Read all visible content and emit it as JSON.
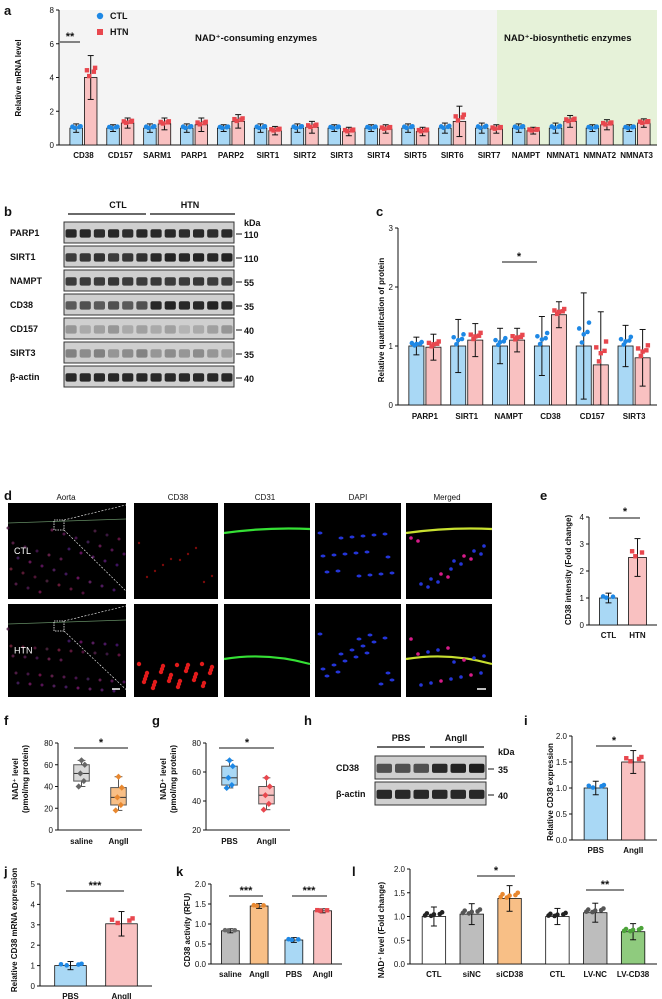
{
  "figure": {
    "panel_labels": [
      "a",
      "b",
      "c",
      "d",
      "e",
      "f",
      "g",
      "h",
      "i",
      "j",
      "k",
      "l"
    ]
  },
  "colors": {
    "ctl": "#A9D8F5",
    "ctl_dot": "#1E88E5",
    "htn": "#F9C1C1",
    "htn_dot": "#E8474E",
    "orange": "#F8BF86",
    "orange_dot": "#E88830",
    "grey": "#BDBDBD",
    "green": "#8FCB7E",
    "green_dot": "#4CA33A",
    "consuming_bg": "#F4F4F4",
    "biosynthetic_bg": "#E6F2D9"
  },
  "panel_a": {
    "ylabel": "Relative mRNA level",
    "legend": [
      "CTL",
      "HTN"
    ],
    "region_consuming": "NAD⁺-consuming enzymes",
    "region_biosynthetic": "NAD⁺-biosynthetic enzymes",
    "sig": "**"
  },
  "panel_b": {
    "group_ctl": "CTL",
    "group_htn": "HTN",
    "kda": "kDa",
    "rows": [
      {
        "name": "PARP1",
        "mw": "110"
      },
      {
        "name": "SIRT1",
        "mw": "110"
      },
      {
        "name": "NAMPT",
        "mw": "55"
      },
      {
        "name": "CD38",
        "mw": "35"
      },
      {
        "name": "CD157",
        "mw": "40"
      },
      {
        "name": "SIRT3",
        "mw": "35"
      },
      {
        "name": "β-actin",
        "mw": "40"
      }
    ]
  },
  "panel_c": {
    "ylabel": "Relative quantification of protein",
    "sig": "*"
  },
  "panel_d": {
    "columns": [
      "Aorta",
      "CD38",
      "CD31",
      "DAPI",
      "Merged"
    ],
    "rows": [
      "CTL",
      "HTN"
    ]
  },
  "panel_e": {
    "sig": "*"
  },
  "panel_f": {
    "ylabel_main": "NAD⁺ level",
    "ylabel_sub": "(pmol/mg protein)",
    "sig": "*"
  },
  "panel_g": {
    "ylabel_main": "NAD⁺ level",
    "ylabel_sub": "(pmol/mg protein)",
    "sig": "*"
  },
  "panel_h": {
    "groups": [
      "PBS",
      "AngII"
    ],
    "kda": "kDa",
    "rows": [
      {
        "name": "CD38",
        "mw": "35"
      },
      {
        "name": "β-actin",
        "mw": "40"
      }
    ]
  },
  "panel_i": {
    "sig": "*"
  },
  "panel_j": {
    "sig": "***"
  },
  "panel_k": {
    "sig": [
      "***",
      "***"
    ]
  },
  "panel_l": {
    "sig": [
      "*",
      "**"
    ]
  },
  "chart_data": [
    {
      "id": "a",
      "type": "bar",
      "title": "",
      "ylabel": "Relative mRNA level",
      "categories": [
        "CD38",
        "CD157",
        "SARM1",
        "PARP1",
        "PARP2",
        "SIRT1",
        "SIRT2",
        "SIRT3",
        "SIRT4",
        "SIRT5",
        "SIRT6",
        "SIRT7",
        "NAMPT",
        "NMNAT1",
        "NMNAT2",
        "NMNAT3"
      ],
      "series": [
        {
          "name": "CTL",
          "values": [
            1.0,
            1.0,
            1.0,
            1.0,
            1.0,
            1.0,
            1.0,
            1.0,
            1.0,
            1.0,
            1.0,
            1.0,
            1.0,
            1.0,
            1.0,
            1.0
          ],
          "err": [
            0.25,
            0.2,
            0.25,
            0.25,
            0.2,
            0.25,
            0.25,
            0.2,
            0.2,
            0.25,
            0.3,
            0.3,
            0.25,
            0.3,
            0.2,
            0.2
          ]
        },
        {
          "name": "HTN",
          "values": [
            4.0,
            1.3,
            1.25,
            1.2,
            1.4,
            0.85,
            1.05,
            0.8,
            0.95,
            0.8,
            1.4,
            0.95,
            0.85,
            1.4,
            1.2,
            1.3
          ],
          "err": [
            1.3,
            0.3,
            0.35,
            0.4,
            0.4,
            0.25,
            0.35,
            0.25,
            0.25,
            0.25,
            0.9,
            0.25,
            0.2,
            0.35,
            0.3,
            0.25
          ]
        }
      ],
      "ylim": [
        0,
        8
      ],
      "yticks": [
        0,
        2,
        4,
        6,
        8
      ]
    },
    {
      "id": "c",
      "type": "bar",
      "ylabel": "Relative quantification of protein",
      "categories": [
        "PARP1",
        "SIRT1",
        "NAMPT",
        "CD38",
        "CD157",
        "SIRT3"
      ],
      "series": [
        {
          "name": "CTL",
          "values": [
            1.0,
            1.0,
            1.0,
            1.0,
            1.0,
            1.0
          ],
          "err": [
            0.15,
            0.45,
            0.3,
            0.5,
            0.9,
            0.35
          ]
        },
        {
          "name": "HTN",
          "values": [
            0.98,
            1.1,
            1.1,
            1.53,
            0.68,
            0.8
          ],
          "err": [
            0.22,
            0.28,
            0.2,
            0.22,
            0.9,
            0.48
          ]
        }
      ],
      "ylim": [
        0,
        3
      ],
      "yticks": [
        0,
        1,
        2,
        3
      ]
    },
    {
      "id": "e",
      "type": "bar",
      "ylabel": "CD38 intensity (Fold change)",
      "categories": [
        "CTL",
        "HTN"
      ],
      "values": [
        1.0,
        2.5
      ],
      "err": [
        0.18,
        0.7
      ],
      "ylim": [
        0,
        4
      ],
      "yticks": [
        0,
        1,
        2,
        3,
        4
      ]
    },
    {
      "id": "f",
      "type": "box",
      "ylabel": "NAD⁺ level (pmol/mg protein)",
      "categories": [
        "saline",
        "AngII"
      ],
      "boxes": [
        {
          "min": 40,
          "q1": 45,
          "median": 52,
          "q3": 60,
          "max": 64
        },
        {
          "min": 18,
          "q1": 23,
          "median": 30,
          "q3": 39,
          "max": 49
        }
      ],
      "ylim": [
        0,
        80
      ],
      "yticks": [
        0,
        20,
        40,
        60,
        80
      ]
    },
    {
      "id": "g",
      "type": "box",
      "ylabel": "NAD⁺ level (pmol/mg protein)",
      "categories": [
        "PBS",
        "AngII"
      ],
      "boxes": [
        {
          "min": 49,
          "q1": 51,
          "median": 56,
          "q3": 64,
          "max": 68
        },
        {
          "min": 34,
          "q1": 38,
          "median": 44,
          "q3": 50,
          "max": 56
        }
      ],
      "ylim": [
        20,
        80
      ],
      "yticks": [
        20,
        40,
        60,
        80
      ]
    },
    {
      "id": "i",
      "type": "bar",
      "ylabel": "Relative CD38 expression",
      "categories": [
        "PBS",
        "AngII"
      ],
      "values": [
        1.0,
        1.5
      ],
      "err": [
        0.13,
        0.22
      ],
      "ylim": [
        0,
        2.0
      ],
      "yticks": [
        0.0,
        0.5,
        1.0,
        1.5,
        2.0
      ]
    },
    {
      "id": "j",
      "type": "bar",
      "ylabel": "Relative CD38 mRNA expression",
      "categories": [
        "PBS",
        "AngII"
      ],
      "values": [
        1.0,
        3.05
      ],
      "err": [
        0.2,
        0.6
      ],
      "ylim": [
        0,
        5
      ],
      "yticks": [
        0,
        1,
        2,
        3,
        4,
        5
      ]
    },
    {
      "id": "k",
      "type": "bar",
      "ylabel": "CD38 activity (RFU)",
      "categories": [
        "saline",
        "AngII",
        "PBS",
        "AngII"
      ],
      "values": [
        0.83,
        1.45,
        0.6,
        1.33
      ],
      "err": [
        0.05,
        0.06,
        0.06,
        0.05
      ],
      "ylim": [
        0,
        2.0
      ],
      "yticks": [
        0.0,
        0.5,
        1.0,
        1.5,
        2.0
      ]
    },
    {
      "id": "l",
      "type": "bar",
      "ylabel": "NAD⁺ level (Fold change)",
      "categories": [
        "CTL",
        "siNC",
        "siCD38",
        "CTL",
        "LV-NC",
        "LV-CD38"
      ],
      "values": [
        1.0,
        1.05,
        1.38,
        1.0,
        1.08,
        0.68
      ],
      "err": [
        0.2,
        0.22,
        0.27,
        0.17,
        0.2,
        0.17
      ],
      "ylim": [
        0,
        2.0
      ],
      "yticks": [
        0.0,
        0.5,
        1.0,
        1.5,
        2.0
      ]
    }
  ]
}
